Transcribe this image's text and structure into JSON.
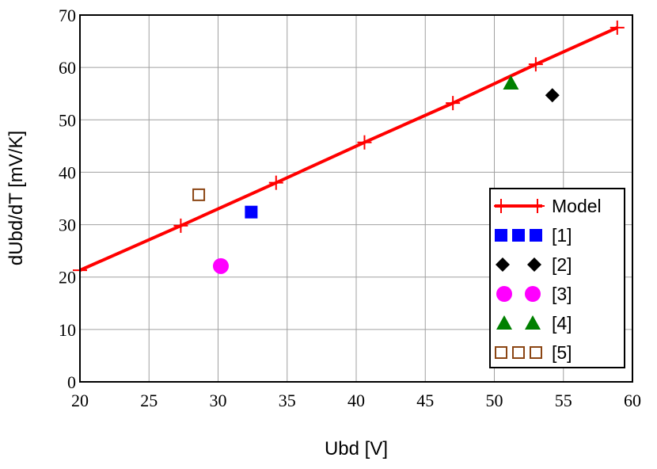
{
  "chart_data": {
    "type": "scatter",
    "xlabel": "Ubd [V]",
    "ylabel": "dUbd/dT [mV/K]",
    "xlim": [
      20,
      60
    ],
    "ylim": [
      0,
      70
    ],
    "xticks": [
      "20",
      "25",
      "30",
      "35",
      "40",
      "45",
      "50",
      "55",
      "60"
    ],
    "yticks": [
      "0",
      "10",
      "20",
      "30",
      "40",
      "50",
      "60",
      "70"
    ],
    "grid": true,
    "legend_position": "bottom-right",
    "series": [
      {
        "name": "Model",
        "kind": "line",
        "marker": "plus",
        "color": "#ff0000",
        "x": [
          20.0,
          27.3,
          34.2,
          40.6,
          47.0,
          53.0,
          58.9
        ],
        "y": [
          21.3,
          29.8,
          38.0,
          45.7,
          53.2,
          60.6,
          67.6
        ]
      },
      {
        "name": "[1]",
        "kind": "scatter",
        "marker": "square",
        "color": "#0000ff",
        "x": [
          32.4
        ],
        "y": [
          32.4
        ]
      },
      {
        "name": "[2]",
        "kind": "scatter",
        "marker": "diamond",
        "color": "#000000",
        "x": [
          54.2
        ],
        "y": [
          54.7
        ]
      },
      {
        "name": "[3]",
        "kind": "scatter",
        "marker": "circle",
        "color": "#ff00ff",
        "x": [
          30.2
        ],
        "y": [
          22.1
        ]
      },
      {
        "name": "[4]",
        "kind": "scatter",
        "marker": "triangle",
        "color": "#008000",
        "x": [
          51.2
        ],
        "y": [
          57.0
        ]
      },
      {
        "name": "[5]",
        "kind": "scatter",
        "marker": "open-square",
        "color": "#8b4513",
        "x": [
          28.6
        ],
        "y": [
          35.7
        ]
      }
    ]
  }
}
